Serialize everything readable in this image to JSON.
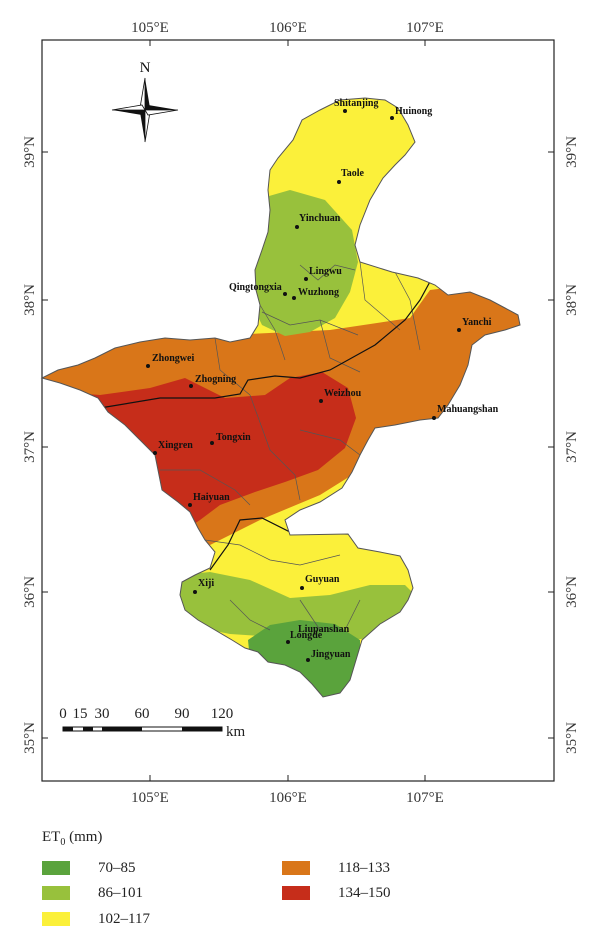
{
  "axes": {
    "lon_labels": [
      "105°E",
      "106°E",
      "107°E"
    ],
    "lat_labels": [
      "39°N",
      "38°N",
      "37°N",
      "36°N",
      "35°N"
    ]
  },
  "north_arrow": {
    "label": "N"
  },
  "cities": [
    {
      "name": "Shitanjing"
    },
    {
      "name": "Huinong"
    },
    {
      "name": "Taole"
    },
    {
      "name": "Yinchuan"
    },
    {
      "name": "Lingwu"
    },
    {
      "name": "Qingtongxia"
    },
    {
      "name": "Wuzhong"
    },
    {
      "name": "Yanchi"
    },
    {
      "name": "Zhongwei"
    },
    {
      "name": "Zhogning"
    },
    {
      "name": "Weizhou"
    },
    {
      "name": "Mahuangshan"
    },
    {
      "name": "Xingren"
    },
    {
      "name": "Tongxin"
    },
    {
      "name": "Haiyuan"
    },
    {
      "name": "Guyuan"
    },
    {
      "name": "Xiji"
    },
    {
      "name": "Liupanshan"
    },
    {
      "name": "Longde"
    },
    {
      "name": "Jingyuan"
    }
  ],
  "scale_bar": {
    "ticks": [
      "0",
      "15",
      "30",
      "60",
      "90",
      "120"
    ],
    "unit": "km"
  },
  "legend": {
    "title_main": "ET",
    "title_sub": "0",
    "title_unit": " (mm)",
    "items": [
      {
        "label": "70–85",
        "color": "#5aa33c"
      },
      {
        "label": "86–101",
        "color": "#98c13c"
      },
      {
        "label": "102–117",
        "color": "#fbf03a"
      },
      {
        "label": "118–133",
        "color": "#d97619"
      },
      {
        "label": "134–150",
        "color": "#c62d1a"
      }
    ]
  }
}
